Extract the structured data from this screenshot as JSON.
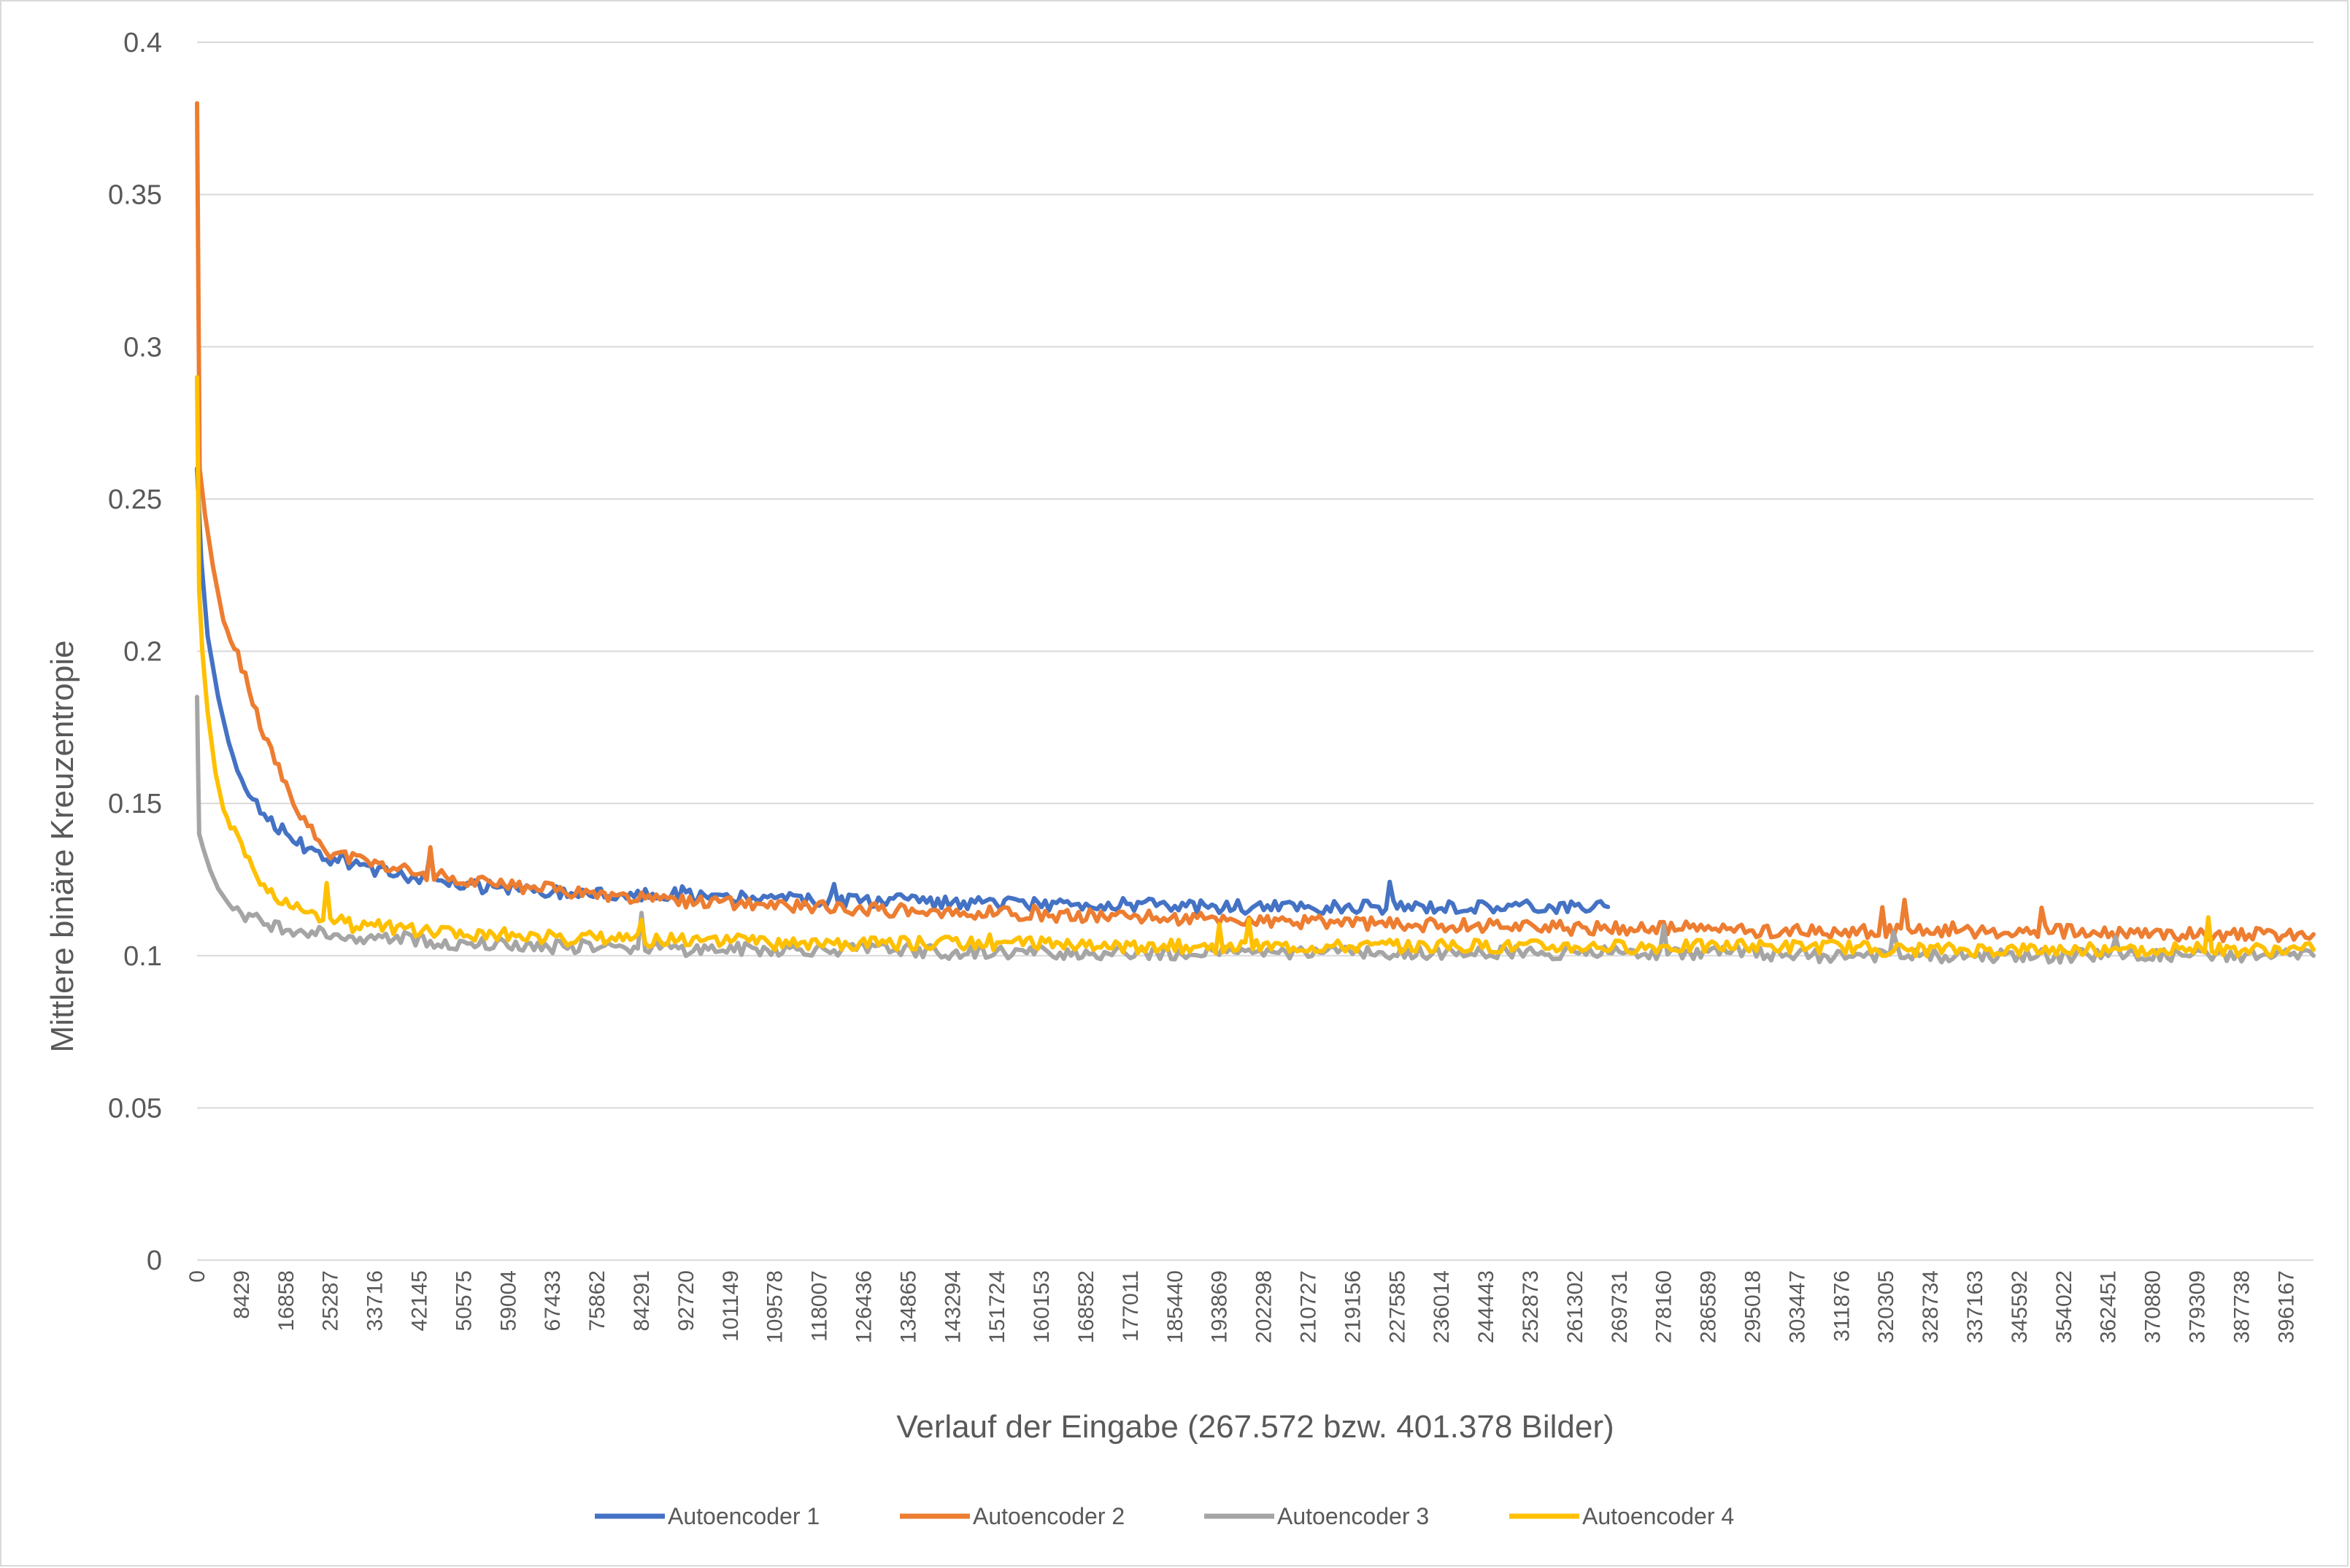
{
  "chart_data": {
    "type": "line",
    "title": "",
    "xlabel": "Verlauf der Eingabe (267.572 bzw. 401.378 Bilder)",
    "ylabel": "Mittlere binäre Kreuzentropie",
    "ylim": [
      0,
      0.4
    ],
    "xlim": [
      0,
      401378
    ],
    "grid": true,
    "legend_position": "bottom",
    "y_ticks": [
      "0",
      "0.05",
      "0.1",
      "0.15",
      "0.2",
      "0.25",
      "0.3",
      "0.35",
      "0.4"
    ],
    "x_ticks": [
      "0",
      "8429",
      "16858",
      "25287",
      "33716",
      "42145",
      "50575",
      "59004",
      "67433",
      "75862",
      "84291",
      "92720",
      "101149",
      "109578",
      "118007",
      "126436",
      "134865",
      "143294",
      "151724",
      "160153",
      "168582",
      "177011",
      "185440",
      "193869",
      "202298",
      "210727",
      "219156",
      "227585",
      "236014",
      "244443",
      "252873",
      "261302",
      "269731",
      "278160",
      "286589",
      "295018",
      "303447",
      "311876",
      "320305",
      "328734",
      "337163",
      "345592",
      "354022",
      "362451",
      "370880",
      "379309",
      "387738",
      "396167"
    ],
    "series": [
      {
        "name": "Autoencoder 1",
        "color": "#4472c4",
        "x": [
          0,
          800,
          2000,
          4000,
          6000,
          8429,
          12000,
          16858,
          21000,
          25287,
          33716,
          42145,
          50575,
          59004,
          67433,
          75862,
          84291,
          92720,
          101149,
          109578,
          118007,
          126436,
          134865,
          143294,
          151724,
          160153,
          168582,
          177011,
          185440,
          193869,
          202298,
          210727,
          219156,
          227585,
          236014,
          244443,
          252873,
          261302,
          267572
        ],
        "y": [
          0.26,
          0.23,
          0.205,
          0.185,
          0.17,
          0.158,
          0.148,
          0.14,
          0.135,
          0.132,
          0.128,
          0.125,
          0.123,
          0.122,
          0.121,
          0.121,
          0.12,
          0.12,
          0.119,
          0.119,
          0.118,
          0.118,
          0.118,
          0.117,
          0.117,
          0.117,
          0.117,
          0.117,
          0.116,
          0.116,
          0.116,
          0.116,
          0.116,
          0.116,
          0.116,
          0.116,
          0.116,
          0.116,
          0.116
        ]
      },
      {
        "name": "Autoencoder 2",
        "color": "#ed7d31",
        "x": [
          0,
          500,
          1500,
          3000,
          5000,
          8429,
          12000,
          16858,
          21000,
          25287,
          33716,
          42145,
          50575,
          59004,
          67433,
          75862,
          84291,
          92720,
          101149,
          109578,
          118007,
          126436,
          134865,
          143294,
          151724,
          160153,
          168582,
          177011,
          185440,
          193869,
          202298,
          210727,
          219156,
          227585,
          236014,
          244443,
          252873,
          261302,
          269731,
          278160,
          286589,
          295018,
          303447,
          311876,
          320305,
          328734,
          337163,
          345592,
          354022,
          362451,
          370880,
          379309,
          387738,
          396167,
          401378
        ],
        "y": [
          0.38,
          0.26,
          0.245,
          0.228,
          0.21,
          0.195,
          0.175,
          0.155,
          0.142,
          0.134,
          0.13,
          0.127,
          0.125,
          0.123,
          0.122,
          0.12,
          0.119,
          0.118,
          0.117,
          0.117,
          0.116,
          0.115,
          0.115,
          0.114,
          0.114,
          0.113,
          0.113,
          0.113,
          0.112,
          0.112,
          0.111,
          0.111,
          0.111,
          0.11,
          0.11,
          0.11,
          0.11,
          0.109,
          0.109,
          0.109,
          0.109,
          0.108,
          0.108,
          0.108,
          0.108,
          0.108,
          0.108,
          0.108,
          0.108,
          0.107,
          0.107,
          0.107,
          0.107,
          0.107,
          0.107
        ]
      },
      {
        "name": "Autoencoder 3",
        "color": "#a5a5a5",
        "x": [
          0,
          400,
          1200,
          2500,
          4000,
          6000,
          8429,
          12000,
          16858,
          25287,
          33716,
          42145,
          50575,
          59004,
          67433,
          75862,
          84291,
          92720,
          101149,
          109578,
          118007,
          126436,
          134865,
          143294,
          151724,
          160153,
          168582,
          177011,
          185440,
          193869,
          202298,
          210727,
          219156,
          227585,
          236014,
          244443,
          252873,
          261302,
          269731,
          278160,
          286589,
          295018,
          303447,
          311876,
          320305,
          328734,
          337163,
          345592,
          354022,
          362451,
          370880,
          379309,
          387738,
          396167,
          401378
        ],
        "y": [
          0.185,
          0.14,
          0.135,
          0.128,
          0.122,
          0.117,
          0.114,
          0.111,
          0.109,
          0.107,
          0.106,
          0.105,
          0.104,
          0.104,
          0.103,
          0.103,
          0.103,
          0.102,
          0.102,
          0.102,
          0.102,
          0.102,
          0.102,
          0.101,
          0.101,
          0.101,
          0.101,
          0.101,
          0.101,
          0.101,
          0.101,
          0.101,
          0.101,
          0.101,
          0.101,
          0.101,
          0.101,
          0.101,
          0.101,
          0.101,
          0.101,
          0.101,
          0.1,
          0.1,
          0.1,
          0.1,
          0.1,
          0.1,
          0.1,
          0.1,
          0.1,
          0.1,
          0.1,
          0.1,
          0.1
        ]
      },
      {
        "name": "Autoencoder 4",
        "color": "#ffc000",
        "x": [
          0,
          400,
          1000,
          2000,
          3500,
          5000,
          8429,
          12000,
          16858,
          25287,
          33716,
          42145,
          50575,
          59004,
          67433,
          75862,
          84291,
          92720,
          101149,
          109578,
          118007,
          126436,
          134865,
          143294,
          151724,
          160153,
          168582,
          177011,
          185440,
          193869,
          202298,
          210727,
          219156,
          227585,
          236014,
          244443,
          252873,
          261302,
          269731,
          278160,
          286589,
          295018,
          303447,
          311876,
          320305,
          328734,
          337163,
          345592,
          354022,
          362451,
          370880,
          379309,
          387738,
          396167,
          401378
        ],
        "y": [
          0.29,
          0.22,
          0.2,
          0.18,
          0.16,
          0.148,
          0.135,
          0.124,
          0.117,
          0.112,
          0.11,
          0.108,
          0.107,
          0.107,
          0.106,
          0.106,
          0.105,
          0.105,
          0.105,
          0.104,
          0.104,
          0.104,
          0.104,
          0.104,
          0.104,
          0.104,
          0.103,
          0.103,
          0.103,
          0.103,
          0.103,
          0.103,
          0.103,
          0.103,
          0.103,
          0.103,
          0.103,
          0.103,
          0.103,
          0.103,
          0.103,
          0.103,
          0.103,
          0.103,
          0.102,
          0.102,
          0.102,
          0.102,
          0.102,
          0.102,
          0.102,
          0.102,
          0.102,
          0.102,
          0.102
        ]
      }
    ]
  }
}
